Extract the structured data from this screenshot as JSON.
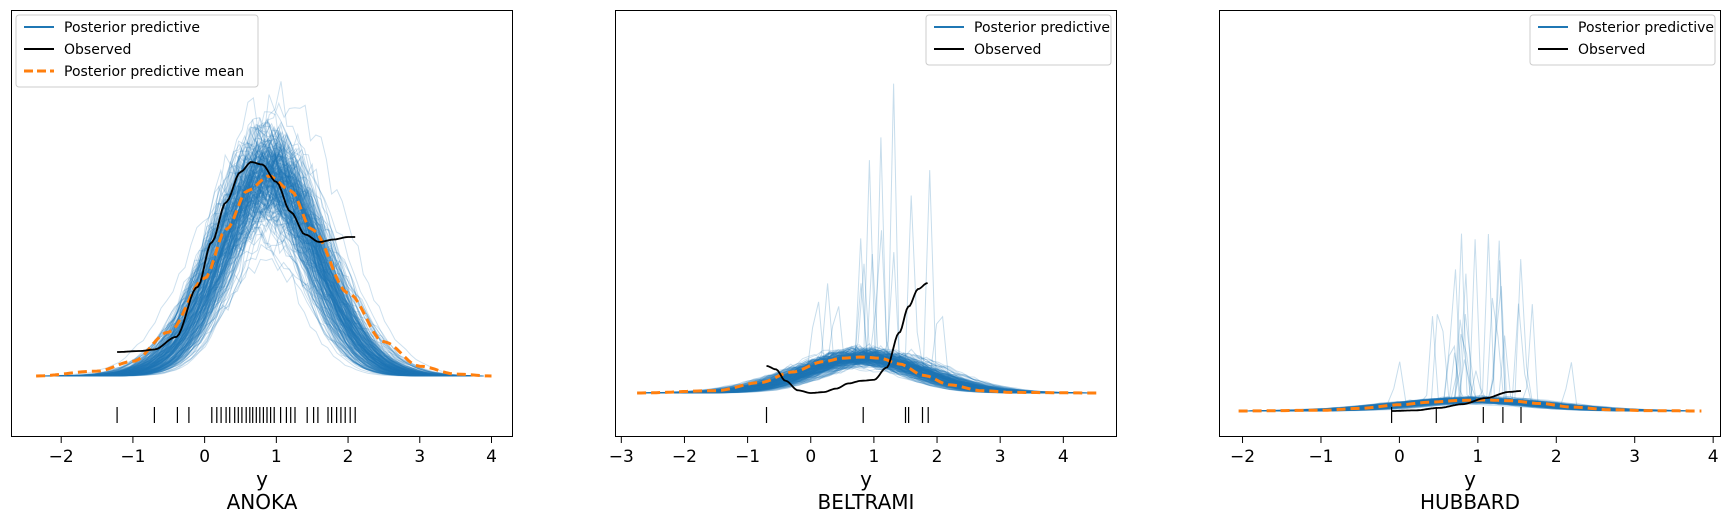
{
  "chart_data": [
    {
      "type": "line",
      "title": "ANOKA",
      "xlabel": "y",
      "ylabel": "",
      "xlim": [
        -2.7,
        4.3
      ],
      "ylim": [
        0,
        0.62
      ],
      "xticks": [
        -2,
        -1,
        0,
        1,
        2,
        3,
        4
      ],
      "tick_labels": [
        "−2",
        "−1",
        "0",
        "1",
        "2",
        "3",
        "4"
      ],
      "legend": [
        "Posterior predictive",
        "Observed",
        "Posterior predictive mean"
      ],
      "legend_position": "top-left",
      "series": [
        {
          "name": "Posterior predictive mean",
          "x": [
            -2.35,
            -1.5,
            -1.0,
            -0.5,
            0.0,
            0.3,
            0.6,
            0.9,
            1.2,
            1.5,
            2.0,
            2.5,
            3.0,
            3.5,
            4.0
          ],
          "y": [
            0.0,
            0.01,
            0.03,
            0.09,
            0.2,
            0.3,
            0.38,
            0.41,
            0.38,
            0.3,
            0.17,
            0.07,
            0.02,
            0.004,
            0.0
          ]
        },
        {
          "name": "Observed",
          "x": [
            -1.22,
            -0.9,
            -0.7,
            -0.4,
            -0.1,
            0.1,
            0.3,
            0.5,
            0.65,
            0.8,
            1.0,
            1.2,
            1.4,
            1.6,
            1.8,
            2.0,
            2.1
          ],
          "y": [
            0.05,
            0.052,
            0.055,
            0.08,
            0.18,
            0.27,
            0.35,
            0.41,
            0.43,
            0.425,
            0.39,
            0.33,
            0.285,
            0.27,
            0.275,
            0.28,
            0.28
          ]
        },
        {
          "name": "Observed points",
          "x": [
            -1.22,
            -0.7,
            -0.38,
            -0.22,
            0.1,
            0.17,
            0.23,
            0.3,
            0.35,
            0.42,
            0.47,
            0.52,
            0.58,
            0.63,
            0.67,
            0.72,
            0.77,
            0.82,
            0.87,
            0.92,
            0.97,
            1.06,
            1.14,
            1.2,
            1.26,
            1.43,
            1.52,
            1.58,
            1.72,
            1.77,
            1.84,
            1.9,
            1.96,
            2.03,
            2.1
          ]
        }
      ],
      "posterior_predictive": {
        "mean": 0.9,
        "sd": 0.67,
        "peak": 0.41
      }
    },
    {
      "type": "line",
      "title": "BELTRAMI",
      "xlabel": "y",
      "ylabel": "",
      "xlim": [
        -3.1,
        4.85
      ],
      "ylim": [
        0,
        3.2
      ],
      "xticks": [
        -3,
        -2,
        -1,
        0,
        1,
        2,
        3,
        4
      ],
      "tick_labels": [
        "−3",
        "−2",
        "−1",
        "0",
        "1",
        "2",
        "3",
        "4"
      ],
      "legend": [
        "Posterior predictive",
        "Observed"
      ],
      "legend_position": "top-right",
      "series": [
        {
          "name": "Posterior predictive mean",
          "x": [
            -2.75,
            -1.5,
            -0.8,
            -0.3,
            0.2,
            0.5,
            0.8,
            1.1,
            1.4,
            1.8,
            2.2,
            2.7,
            3.2,
            4.55
          ],
          "y": [
            0.0,
            0.02,
            0.09,
            0.18,
            0.27,
            0.3,
            0.31,
            0.3,
            0.25,
            0.15,
            0.07,
            0.02,
            0.005,
            0.0
          ]
        },
        {
          "name": "Observed",
          "x": [
            -0.7,
            -0.55,
            -0.4,
            -0.2,
            0.0,
            0.2,
            0.4,
            0.6,
            0.8,
            1.0,
            1.2,
            1.4,
            1.55,
            1.7,
            1.85
          ],
          "y": [
            0.32,
            0.28,
            0.15,
            0.04,
            0.01,
            0.02,
            0.06,
            0.12,
            0.15,
            0.16,
            0.3,
            0.7,
            1.0,
            1.2,
            1.27
          ]
        },
        {
          "name": "Observed points",
          "x": [
            -0.7,
            0.83,
            1.5,
            1.55,
            1.77,
            1.86
          ]
        }
      ],
      "posterior_predictive": {
        "mean": 0.85,
        "sd": 0.9,
        "peak": 0.31
      }
    },
    {
      "type": "line",
      "title": "HUBBARD",
      "xlabel": "y",
      "ylabel": "",
      "xlim": [
        -2.3,
        4.1
      ],
      "ylim": [
        0,
        12.5
      ],
      "xticks": [
        -2,
        -1,
        0,
        1,
        2,
        3,
        4
      ],
      "tick_labels": [
        "−2",
        "−1",
        "0",
        "1",
        "2",
        "3",
        "4"
      ],
      "legend": [
        "Posterior predictive",
        "Observed"
      ],
      "legend_position": "top-right",
      "series": [
        {
          "name": "Posterior predictive mean",
          "x": [
            -2.05,
            -1.0,
            -0.5,
            0.0,
            0.4,
            0.8,
            1.1,
            1.4,
            1.8,
            2.2,
            2.7,
            3.2,
            3.85
          ],
          "y": [
            0.0,
            0.04,
            0.15,
            0.35,
            0.5,
            0.6,
            0.62,
            0.58,
            0.42,
            0.22,
            0.07,
            0.02,
            0.0
          ]
        },
        {
          "name": "Observed",
          "x": [
            -0.1,
            0.2,
            0.5,
            0.8,
            1.1,
            1.4,
            1.55
          ],
          "y": [
            0.7,
            0.72,
            0.8,
            0.92,
            1.12,
            1.32,
            1.35
          ]
        },
        {
          "name": "Observed points",
          "x": [
            -0.1,
            0.47,
            1.07,
            1.32,
            1.55
          ]
        }
      ],
      "posterior_predictive": {
        "mean": 0.95,
        "sd": 0.85,
        "peak": 0.62
      }
    }
  ],
  "colors": {
    "posterior_predictive": "#1f77b4",
    "observed": "#000000",
    "mean": "#ff7f0e",
    "axes": "#000000"
  }
}
